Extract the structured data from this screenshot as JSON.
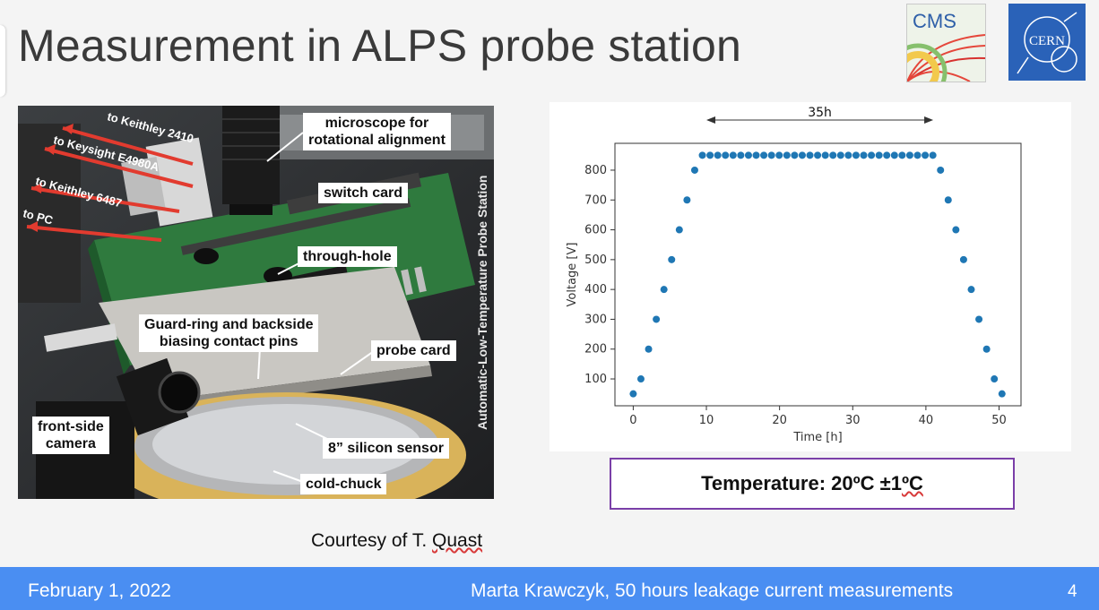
{
  "slide": {
    "title": "Measurement in ALPS probe station",
    "courtesy_prefix": "Courtesy of T. ",
    "courtesy_name": "Quast",
    "temperature_main": "Temperature: 20ºC ±1 ",
    "temperature_unit": "ºC",
    "logos": {
      "cms": "CMS",
      "cern": "CERN"
    }
  },
  "photo": {
    "red_labels": [
      "to Keithley 2410",
      "to Keysight E4980A",
      "to Keithley 6487",
      "to PC"
    ],
    "callouts": {
      "microscope": [
        "microscope for",
        "rotational alignment"
      ],
      "switch_card": "switch card",
      "through_hole": "through-hole",
      "guard_ring": [
        "Guard-ring and backside",
        "biasing contact pins"
      ],
      "probe_card": "probe card",
      "front_camera": [
        "front-side",
        "camera"
      ],
      "silicon_sensor": "8” silicon sensor",
      "cold_chuck": "cold-chuck"
    },
    "vertical_label": "Automatic-Low-Temperature Probe Station"
  },
  "chart_data": {
    "type": "scatter",
    "xlabel": "Time [h]",
    "ylabel": "Voltage [V]",
    "xlim": [
      -2.5,
      53
    ],
    "ylim": [
      10,
      890
    ],
    "xticks": [
      0,
      10,
      20,
      30,
      40,
      50
    ],
    "yticks": [
      100,
      200,
      300,
      400,
      500,
      600,
      700,
      800
    ],
    "annotation": "35h",
    "annotation_span": [
      10,
      41
    ],
    "color": "#1f77b4",
    "x": [
      0,
      1,
      2,
      3,
      4,
      5,
      6,
      7,
      8,
      9,
      10,
      11,
      12,
      13,
      14,
      15,
      16,
      17,
      18,
      19,
      20,
      21,
      22,
      23,
      24,
      25,
      26,
      27,
      28,
      29,
      30,
      31,
      32,
      33,
      34,
      35,
      36,
      37,
      38,
      39,
      40,
      41,
      42,
      43,
      44,
      45,
      46,
      47,
      48,
      49,
      50,
      51
    ],
    "points": [
      [
        0,
        50
      ],
      [
        1.05,
        100
      ],
      [
        2.1,
        200
      ],
      [
        3.15,
        300
      ],
      [
        4.2,
        400
      ],
      [
        5.25,
        500
      ],
      [
        6.3,
        600
      ],
      [
        7.35,
        700
      ],
      [
        8.4,
        800
      ],
      [
        9.45,
        850
      ],
      [
        10.5,
        850
      ],
      [
        11.55,
        850
      ],
      [
        12.6,
        850
      ],
      [
        13.65,
        850
      ],
      [
        14.7,
        850
      ],
      [
        15.75,
        850
      ],
      [
        16.8,
        850
      ],
      [
        17.85,
        850
      ],
      [
        18.9,
        850
      ],
      [
        19.95,
        850
      ],
      [
        21,
        850
      ],
      [
        22.05,
        850
      ],
      [
        23.1,
        850
      ],
      [
        24.15,
        850
      ],
      [
        25.2,
        850
      ],
      [
        26.25,
        850
      ],
      [
        27.3,
        850
      ],
      [
        28.35,
        850
      ],
      [
        29.4,
        850
      ],
      [
        30.45,
        850
      ],
      [
        31.5,
        850
      ],
      [
        32.55,
        850
      ],
      [
        33.6,
        850
      ],
      [
        34.65,
        850
      ],
      [
        35.7,
        850
      ],
      [
        36.75,
        850
      ],
      [
        37.8,
        850
      ],
      [
        38.85,
        850
      ],
      [
        39.9,
        850
      ],
      [
        40.95,
        850
      ],
      [
        42,
        800
      ],
      [
        43.05,
        700
      ],
      [
        44.1,
        600
      ],
      [
        45.15,
        500
      ],
      [
        46.2,
        400
      ],
      [
        47.25,
        300
      ],
      [
        48.3,
        200
      ],
      [
        49.35,
        100
      ],
      [
        50.4,
        50
      ]
    ]
  },
  "footer": {
    "date": "February 1, 2022",
    "author": "Marta Krawczyk, 50 hours leakage current measurements",
    "page": "4"
  }
}
